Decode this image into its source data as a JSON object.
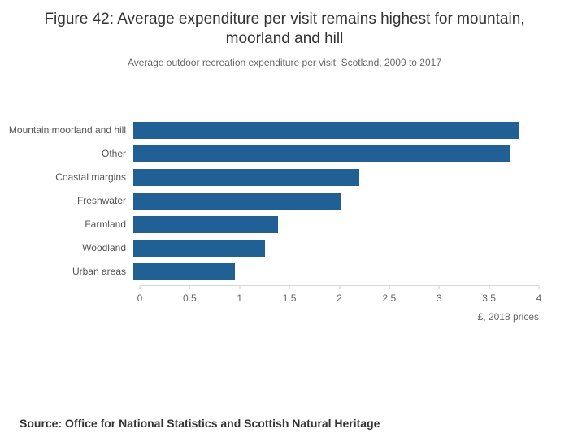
{
  "header": {
    "title": "Figure 42: Average expenditure per visit remains highest for mountain, moorland and hill",
    "subtitle": "Average outdoor recreation expenditure per visit, Scotland, 2009 to 2017"
  },
  "chart_data": {
    "type": "bar",
    "orientation": "horizontal",
    "title": "Figure 42: Average expenditure per visit remains highest for mountain, moorland and hill",
    "subtitle": "Average outdoor recreation expenditure per visit, Scotland, 2009 to 2017",
    "categories": [
      "Mountain moorland and hill",
      "Other",
      "Coastal margins",
      "Freshwater",
      "Farmland",
      "Woodland",
      "Urban areas"
    ],
    "values": [
      3.8,
      3.72,
      2.23,
      2.05,
      1.43,
      1.3,
      1.0
    ],
    "xlabel": "£, 2018 prices",
    "ylabel": "",
    "xlim": [
      0,
      4
    ],
    "xticks": [
      0,
      0.5,
      1,
      1.5,
      2,
      2.5,
      3,
      3.5,
      4
    ],
    "bar_color": "#206095",
    "grid": false,
    "legend": false
  },
  "footer": {
    "source": "Source: Office for National Statistics and Scottish Natural Heritage"
  }
}
